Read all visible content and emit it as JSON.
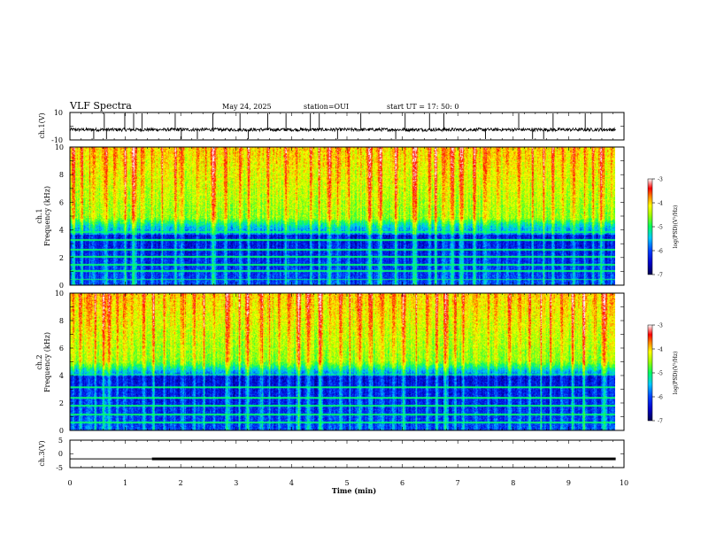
{
  "header": {
    "title": "VLF Spectra",
    "date": "May 24, 2025",
    "station": "station=OUI",
    "start": "start  UT =   17: 50: 0"
  },
  "chart_data": [
    {
      "type": "line",
      "title": "",
      "ylabel": "ch.1(V)",
      "ylim": [
        -10,
        10
      ],
      "yticks": [
        "10",
        "-10"
      ],
      "baseline": -2.5,
      "noise_amplitude": 1.2,
      "spikes": [
        0.43,
        0.62,
        0.66,
        0.99,
        1.15,
        1.3,
        1.9,
        2.01,
        2.3,
        2.58,
        3.07,
        3.22,
        3.57,
        3.9,
        4.34,
        4.5,
        4.83,
        5.25,
        5.88,
        6.05,
        6.49,
        6.75,
        7.5,
        8.1,
        8.35,
        8.55,
        8.72,
        9.3,
        9.6
      ],
      "xlim": [
        0,
        10
      ]
    },
    {
      "type": "heatmap",
      "ylabel_channel": "ch.1",
      "ylabel": "Frequency (kHz)",
      "ylim": [
        0,
        10
      ],
      "yticks": [
        "0",
        "2",
        "4",
        "6",
        "8",
        "10"
      ],
      "xlim": [
        0,
        9.85
      ],
      "noise_floor_khz": 5.0,
      "hum_lines_khz": [
        0.45,
        1.05,
        1.5,
        2.1,
        2.6,
        3.3,
        3.9
      ],
      "sferic_times_min": [
        0.06,
        0.21,
        0.35,
        0.43,
        0.62,
        0.66,
        0.8,
        0.99,
        1.15,
        1.3,
        1.47,
        1.66,
        1.9,
        2.01,
        2.3,
        2.45,
        2.58,
        2.8,
        3.07,
        3.22,
        3.4,
        3.57,
        3.73,
        3.9,
        4.08,
        4.34,
        4.5,
        4.68,
        4.83,
        5.02,
        5.25,
        5.4,
        5.6,
        5.88,
        6.05,
        6.22,
        6.49,
        6.6,
        6.75,
        6.9,
        7.07,
        7.3,
        7.5,
        7.72,
        7.9,
        8.1,
        8.35,
        8.55,
        8.72,
        8.9,
        9.1,
        9.3,
        9.45,
        9.6,
        9.78
      ],
      "colorbar": {
        "label": "log(PSD)(V²/Hz)",
        "range": [
          -7,
          -3
        ],
        "ticks": [
          "-3",
          "-4",
          "-5",
          "-6",
          "-7"
        ]
      }
    },
    {
      "type": "heatmap",
      "ylabel_channel": "ch.2",
      "ylabel": "Frequency (kHz)",
      "ylim": [
        0,
        10
      ],
      "yticks": [
        "0",
        "2",
        "4",
        "6",
        "8",
        "10"
      ],
      "xlim": [
        0,
        9.85
      ],
      "noise_floor_khz": 5.2,
      "hum_lines_khz": [
        0.6,
        1.2,
        1.8,
        2.4,
        3.2,
        4.1
      ],
      "sferic_times_min": [
        0.05,
        0.18,
        0.33,
        0.45,
        0.6,
        0.7,
        0.85,
        0.98,
        1.12,
        1.33,
        1.5,
        1.7,
        1.88,
        2.03,
        2.25,
        2.42,
        2.6,
        2.84,
        3.05,
        3.2,
        3.45,
        3.6,
        3.78,
        3.95,
        4.12,
        4.3,
        4.52,
        4.7,
        4.88,
        5.05,
        5.22,
        5.42,
        5.63,
        5.85,
        6.02,
        6.25,
        6.45,
        6.62,
        6.78,
        6.95,
        7.1,
        7.33,
        7.55,
        7.7,
        7.93,
        8.12,
        8.3,
        8.5,
        8.68,
        8.88,
        9.08,
        9.28,
        9.48,
        9.65,
        9.8
      ],
      "colorbar": {
        "label": "log(PSD)(V²/Hz)",
        "range": [
          -7,
          -3
        ],
        "ticks": [
          "-3",
          "-4",
          "-5",
          "-6",
          "-7"
        ]
      }
    },
    {
      "type": "line",
      "ylabel": "ch.3(V)",
      "ylim": [
        -5,
        5
      ],
      "yticks": [
        "5",
        "0",
        "-5"
      ],
      "segments": [
        {
          "x0": 0,
          "x1": 1.48,
          "y": -1.8,
          "weight": "thin"
        },
        {
          "x0": 1.48,
          "x1": 9.85,
          "y": -1.8,
          "weight": "thick"
        }
      ],
      "xlabel": "Time (min)",
      "xlim": [
        0,
        10
      ],
      "xticks": [
        "0",
        "1",
        "2",
        "3",
        "4",
        "5",
        "6",
        "7",
        "8",
        "9",
        "10"
      ]
    }
  ]
}
